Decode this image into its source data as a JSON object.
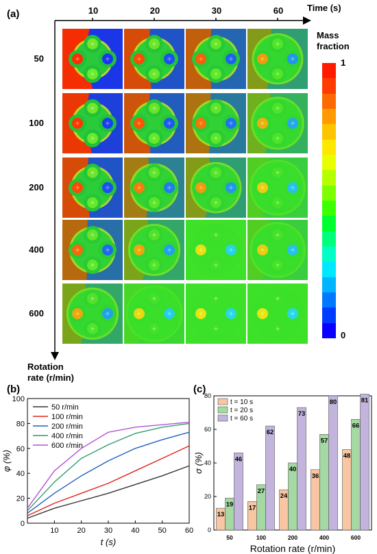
{
  "panel_a": {
    "label": "(a)",
    "time_axis_title": "Time (s)",
    "time_labels": [
      "10",
      "20",
      "30",
      "60"
    ],
    "rate_labels": [
      "50",
      "100",
      "200",
      "400",
      "600"
    ],
    "rate_axis_title_line1": "Rotation",
    "rate_axis_title_line2": "rate (r/min)",
    "colorbar_title_line1": "Mass",
    "colorbar_title_line2": "fraction",
    "colorbar_max": "1",
    "colorbar_min": "0",
    "colorbar_colors": [
      "#ff1a00",
      "#ff3c00",
      "#ff6a00",
      "#ff9a00",
      "#ffc400",
      "#ffe800",
      "#e8ff00",
      "#b6ff00",
      "#7cff00",
      "#3cff00",
      "#00ff2e",
      "#00ff7a",
      "#00ffc4",
      "#00e8ff",
      "#00b4ff",
      "#0078ff",
      "#003cff",
      "#0a00ff"
    ]
  },
  "chart_data": [
    {
      "panel": "(b)",
      "type": "line",
      "xlabel": "t (s)",
      "ylabel": "φ (%)",
      "xlim": [
        0,
        60
      ],
      "ylim": [
        0,
        100
      ],
      "xticks": [
        10,
        20,
        30,
        40,
        50,
        60
      ],
      "yticks": [
        0,
        20,
        40,
        60,
        80,
        100
      ],
      "legend_position": "top-left",
      "series": [
        {
          "name": "50 r/min",
          "color": "#333333",
          "x": [
            0,
            10,
            20,
            30,
            40,
            50,
            60
          ],
          "y": [
            4,
            12,
            18,
            24,
            31,
            38,
            46
          ]
        },
        {
          "name": "100 r/min",
          "color": "#e0201b",
          "x": [
            0,
            10,
            20,
            30,
            40,
            50,
            60
          ],
          "y": [
            6,
            16,
            24,
            32,
            42,
            52,
            62
          ]
        },
        {
          "name": "200 r/min",
          "color": "#1f5fbf",
          "x": [
            0,
            10,
            20,
            30,
            40,
            50,
            60
          ],
          "y": [
            8,
            24,
            38,
            50,
            60,
            67,
            73
          ]
        },
        {
          "name": "400 r/min",
          "color": "#2e9b6a",
          "x": [
            0,
            10,
            20,
            30,
            40,
            50,
            60
          ],
          "y": [
            10,
            33,
            52,
            63,
            72,
            77,
            80
          ]
        },
        {
          "name": "600 r/min",
          "color": "#b451d6",
          "x": [
            0,
            10,
            20,
            30,
            40,
            50,
            60
          ],
          "y": [
            12,
            42,
            60,
            73,
            77,
            79,
            81
          ]
        }
      ]
    },
    {
      "panel": "(c)",
      "type": "bar",
      "xlabel": "Rotation rate (r/min)",
      "ylabel": "σ (%)",
      "ylim": [
        0,
        80
      ],
      "yticks": [
        0,
        20,
        40,
        60,
        80
      ],
      "categories": [
        "50",
        "100",
        "200",
        "400",
        "600"
      ],
      "legend_position": "top-left",
      "series": [
        {
          "name": "t = 10 s",
          "color": "#f8c6a2",
          "values": [
            13,
            17,
            24,
            36,
            48
          ]
        },
        {
          "name": "t = 20 s",
          "color": "#a5d9a3",
          "values": [
            19,
            27,
            40,
            57,
            66
          ]
        },
        {
          "name": "t = 60 s",
          "color": "#c2b4dc",
          "values": [
            46,
            62,
            73,
            80,
            81
          ]
        }
      ]
    }
  ]
}
